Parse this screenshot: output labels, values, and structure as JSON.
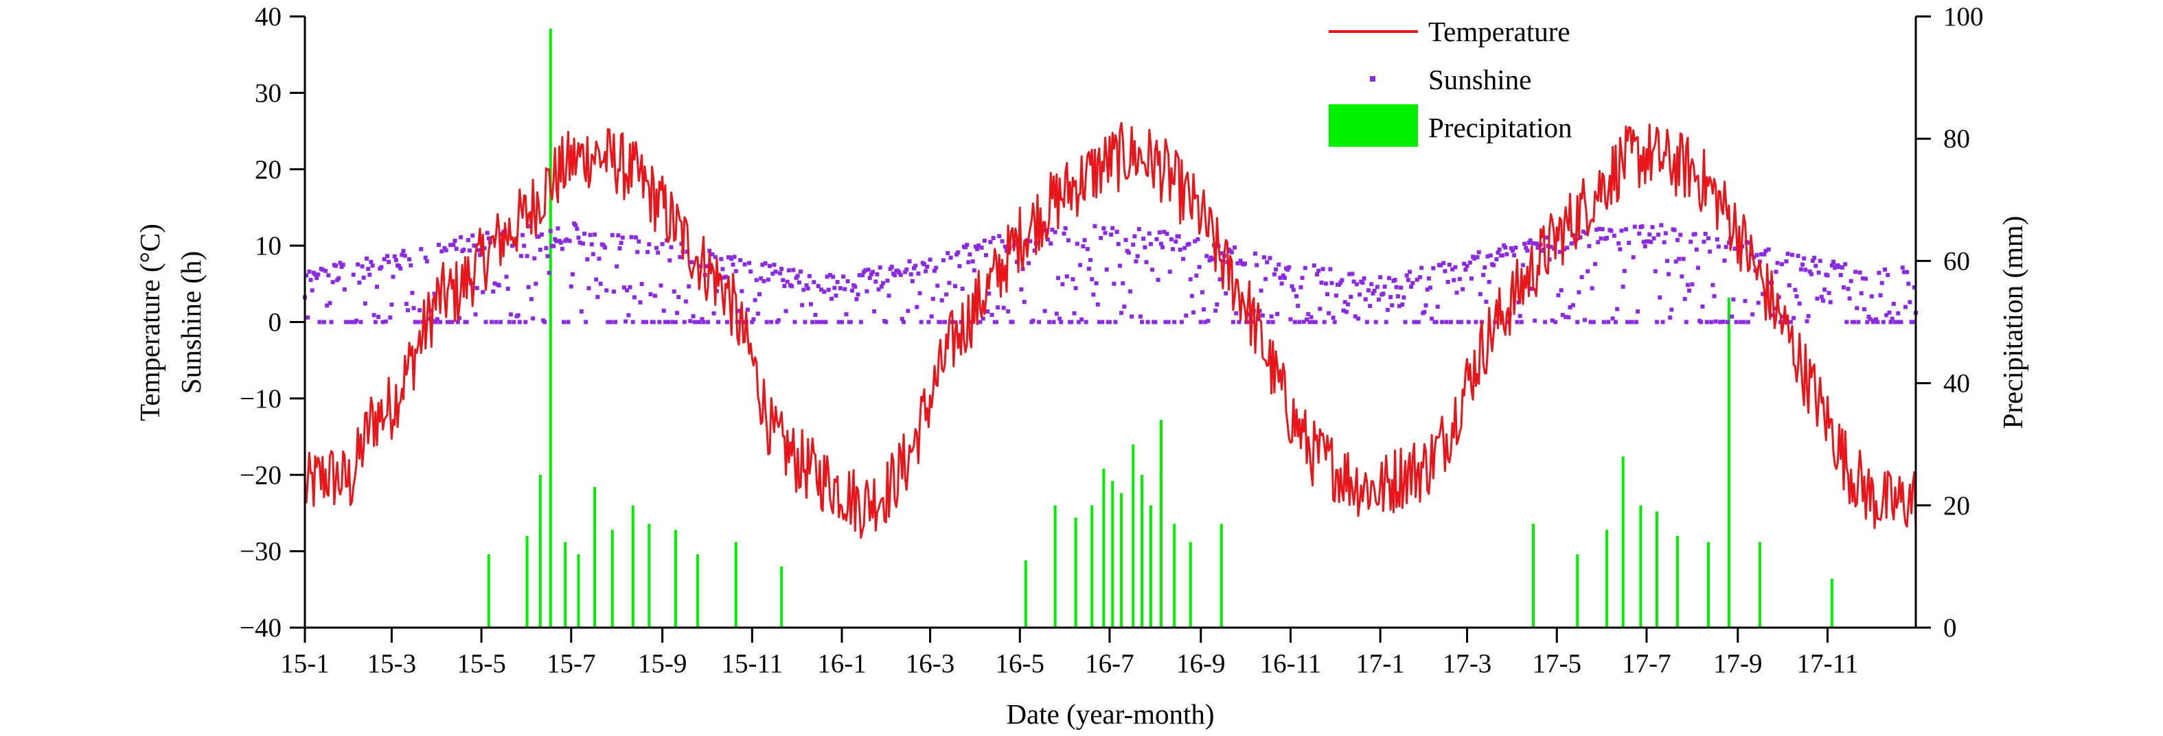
{
  "colors": {
    "temperature": "#e8161a",
    "sunshine": "#8a2be2",
    "precipitation": "#00f000",
    "axis": "#000000"
  },
  "chart_data": {
    "type": "line",
    "x_label": "Date (year-month)",
    "y_left_label_line1": "Temperature (°C)",
    "y_left_label_line2": "Sunshine (h)",
    "y_right_label": "Precipitation (mm)",
    "x_range": [
      "2015-01-01",
      "2017-12-31"
    ],
    "x_ticks": [
      "15-1",
      "15-3",
      "15-5",
      "15-7",
      "15-9",
      "15-11",
      "16-1",
      "16-3",
      "16-5",
      "16-7",
      "16-9",
      "16-11",
      "17-1",
      "17-3",
      "17-5",
      "17-7",
      "17-9",
      "17-11"
    ],
    "x_tick_dates": [
      "2015-01-01",
      "2015-03-01",
      "2015-05-01",
      "2015-07-01",
      "2015-09-01",
      "2015-11-01",
      "2016-01-01",
      "2016-03-01",
      "2016-05-01",
      "2016-07-01",
      "2016-09-01",
      "2016-11-01",
      "2017-01-01",
      "2017-03-01",
      "2017-05-01",
      "2017-07-01",
      "2017-09-01",
      "2017-11-01"
    ],
    "y_left_range": [
      -40,
      40
    ],
    "y_left_ticks": [
      "−40",
      "−30",
      "−20",
      "−10",
      "0",
      "10",
      "20",
      "30",
      "40"
    ],
    "y_right_range": [
      0,
      100
    ],
    "y_right_ticks": [
      "0",
      "20",
      "40",
      "60",
      "80",
      "100"
    ],
    "legend": {
      "position": "top-center",
      "items": [
        "Temperature",
        "Sunshine",
        "Precipitation"
      ]
    },
    "grid": false,
    "series": [
      {
        "name": "Temperature",
        "axis": "left",
        "type": "line",
        "unit": "°C",
        "points": [
          [
            "2015-01-01",
            -22
          ],
          [
            "2015-01-15",
            -20
          ],
          [
            "2015-02-01",
            -21
          ],
          [
            "2015-02-15",
            -13
          ],
          [
            "2015-03-01",
            -11
          ],
          [
            "2015-03-15",
            -5
          ],
          [
            "2015-04-01",
            3
          ],
          [
            "2015-04-15",
            4
          ],
          [
            "2015-05-01",
            8
          ],
          [
            "2015-05-15",
            11
          ],
          [
            "2015-06-01",
            14
          ],
          [
            "2015-06-15",
            18
          ],
          [
            "2015-07-01",
            21
          ],
          [
            "2015-07-15",
            22
          ],
          [
            "2015-08-01",
            21
          ],
          [
            "2015-08-15",
            19
          ],
          [
            "2015-09-01",
            15
          ],
          [
            "2015-09-15",
            11
          ],
          [
            "2015-10-01",
            7
          ],
          [
            "2015-10-15",
            4
          ],
          [
            "2015-11-01",
            -5
          ],
          [
            "2015-11-15",
            -15
          ],
          [
            "2015-12-01",
            -18
          ],
          [
            "2015-12-15",
            -20
          ],
          [
            "2016-01-01",
            -22
          ],
          [
            "2016-01-15",
            -24
          ],
          [
            "2016-02-01",
            -22
          ],
          [
            "2016-02-15",
            -18
          ],
          [
            "2016-03-01",
            -10
          ],
          [
            "2016-03-15",
            -3
          ],
          [
            "2016-04-01",
            2
          ],
          [
            "2016-04-15",
            6
          ],
          [
            "2016-05-01",
            11
          ],
          [
            "2016-05-15",
            14
          ],
          [
            "2016-06-01",
            17
          ],
          [
            "2016-06-15",
            19
          ],
          [
            "2016-07-01",
            21
          ],
          [
            "2016-07-15",
            22
          ],
          [
            "2016-08-01",
            21
          ],
          [
            "2016-08-15",
            18
          ],
          [
            "2016-09-01",
            14
          ],
          [
            "2016-09-15",
            8
          ],
          [
            "2016-10-01",
            3
          ],
          [
            "2016-10-15",
            -4
          ],
          [
            "2016-11-01",
            -12
          ],
          [
            "2016-11-15",
            -17
          ],
          [
            "2016-12-01",
            -19
          ],
          [
            "2016-12-15",
            -21
          ],
          [
            "2017-01-01",
            -22
          ],
          [
            "2017-01-15",
            -20
          ],
          [
            "2017-02-01",
            -19
          ],
          [
            "2017-02-15",
            -15
          ],
          [
            "2017-03-01",
            -8
          ],
          [
            "2017-03-15",
            -2
          ],
          [
            "2017-04-01",
            3
          ],
          [
            "2017-04-15",
            7
          ],
          [
            "2017-05-01",
            11
          ],
          [
            "2017-05-15",
            14
          ],
          [
            "2017-06-01",
            18
          ],
          [
            "2017-06-15",
            21
          ],
          [
            "2017-07-01",
            22
          ],
          [
            "2017-07-15",
            21
          ],
          [
            "2017-08-01",
            20
          ],
          [
            "2017-08-15",
            17
          ],
          [
            "2017-09-01",
            12
          ],
          [
            "2017-09-15",
            6
          ],
          [
            "2017-10-01",
            0
          ],
          [
            "2017-10-15",
            -6
          ],
          [
            "2017-11-01",
            -13
          ],
          [
            "2017-11-15",
            -19
          ],
          [
            "2017-12-01",
            -23
          ],
          [
            "2017-12-15",
            -24
          ],
          [
            "2017-12-31",
            -23
          ]
        ]
      },
      {
        "name": "Sunshine",
        "axis": "left",
        "type": "scatter",
        "unit": "h",
        "upper_envelope": [
          [
            "2015-01-01",
            7
          ],
          [
            "2015-03-01",
            9
          ],
          [
            "2015-05-01",
            12
          ],
          [
            "2015-07-01",
            13
          ],
          [
            "2015-09-01",
            11
          ],
          [
            "2015-11-01",
            8
          ],
          [
            "2016-01-01",
            6
          ],
          [
            "2016-03-01",
            9
          ],
          [
            "2016-05-01",
            12
          ],
          [
            "2016-07-01",
            13
          ],
          [
            "2016-09-01",
            11
          ],
          [
            "2016-11-01",
            8
          ],
          [
            "2017-01-01",
            6
          ],
          [
            "2017-03-01",
            9
          ],
          [
            "2017-05-01",
            12
          ],
          [
            "2017-07-01",
            13
          ],
          [
            "2017-09-01",
            11
          ],
          [
            "2017-11-01",
            8
          ],
          [
            "2017-12-31",
            7
          ]
        ]
      },
      {
        "name": "Precipitation",
        "axis": "right",
        "type": "bar",
        "unit": "mm",
        "values": [
          [
            "2015-05-06",
            12
          ],
          [
            "2015-06-01",
            15
          ],
          [
            "2015-06-10",
            25
          ],
          [
            "2015-06-17",
            98
          ],
          [
            "2015-06-27",
            14
          ],
          [
            "2015-07-06",
            12
          ],
          [
            "2015-07-17",
            23
          ],
          [
            "2015-07-29",
            16
          ],
          [
            "2015-08-12",
            20
          ],
          [
            "2015-08-23",
            17
          ],
          [
            "2015-09-10",
            16
          ],
          [
            "2015-09-25",
            12
          ],
          [
            "2015-10-21",
            14
          ],
          [
            "2015-11-21",
            10
          ],
          [
            "2016-05-05",
            11
          ],
          [
            "2016-05-25",
            20
          ],
          [
            "2016-06-08",
            18
          ],
          [
            "2016-06-19",
            20
          ],
          [
            "2016-06-27",
            26
          ],
          [
            "2016-07-03",
            24
          ],
          [
            "2016-07-09",
            22
          ],
          [
            "2016-07-17",
            30
          ],
          [
            "2016-07-23",
            25
          ],
          [
            "2016-07-29",
            20
          ],
          [
            "2016-08-05",
            34
          ],
          [
            "2016-08-14",
            17
          ],
          [
            "2016-08-25",
            14
          ],
          [
            "2016-09-15",
            17
          ],
          [
            "2017-04-15",
            17
          ],
          [
            "2017-05-15",
            12
          ],
          [
            "2017-06-04",
            16
          ],
          [
            "2017-06-15",
            28
          ],
          [
            "2017-06-27",
            20
          ],
          [
            "2017-07-08",
            19
          ],
          [
            "2017-07-22",
            15
          ],
          [
            "2017-08-12",
            14
          ],
          [
            "2017-08-26",
            54
          ],
          [
            "2017-09-16",
            14
          ],
          [
            "2017-11-04",
            8
          ]
        ]
      }
    ]
  }
}
